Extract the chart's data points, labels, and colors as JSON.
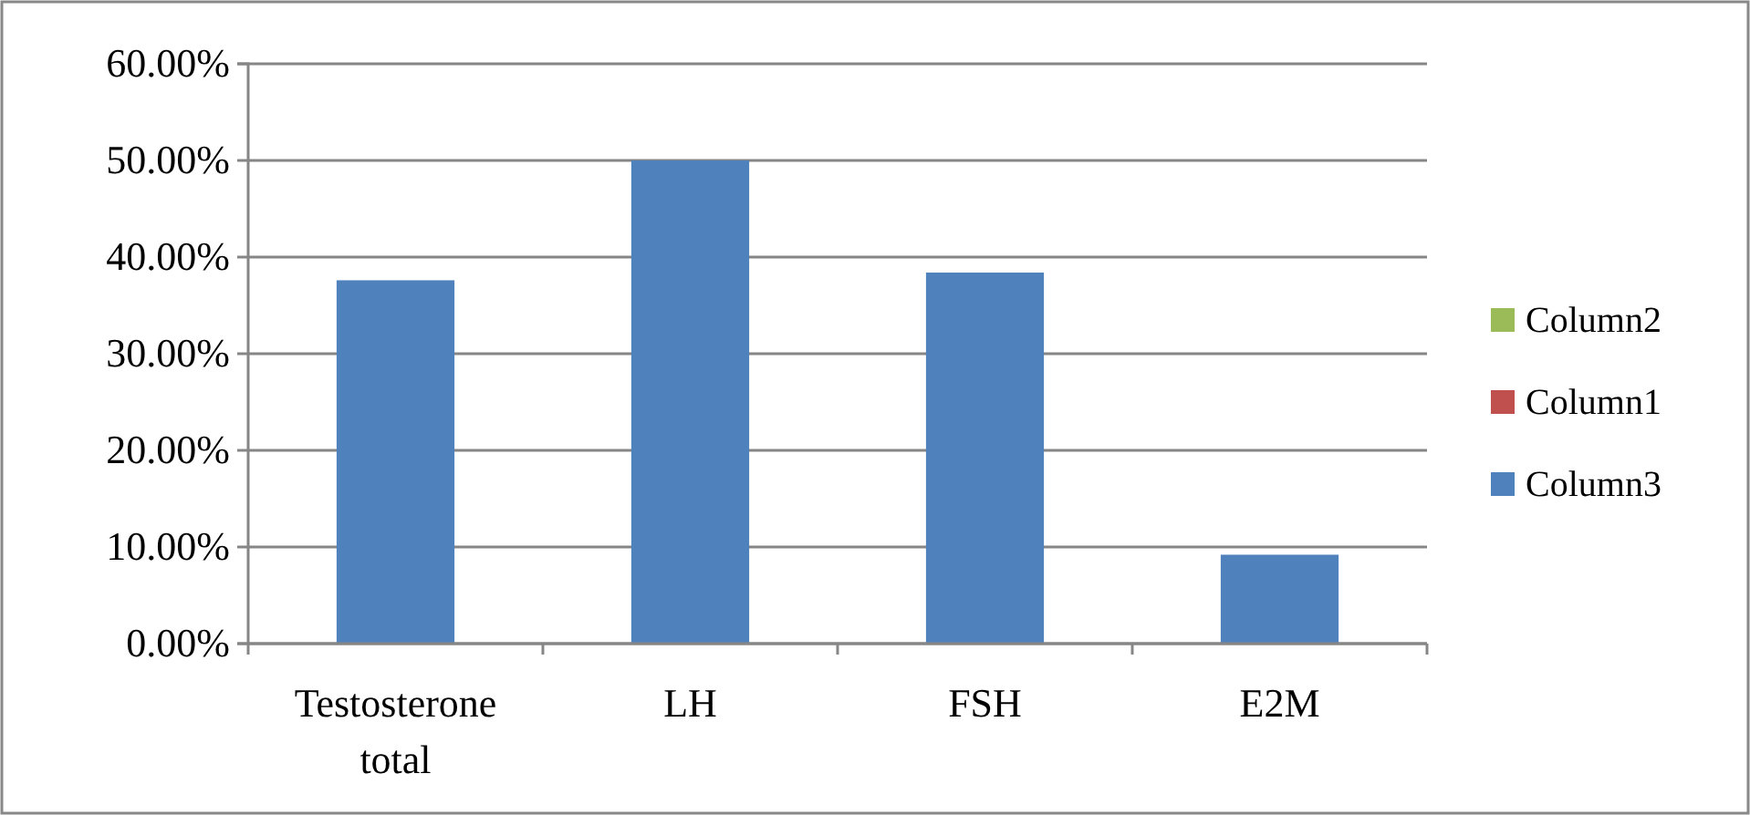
{
  "chart_data": {
    "type": "bar",
    "stacked": true,
    "categories": [
      "Testosterone total",
      "LH",
      "FSH",
      "E2M"
    ],
    "series": [
      {
        "name": "Column3",
        "color": "#4f81bd",
        "values": [
          37.6,
          50,
          38.4,
          9.2
        ]
      },
      {
        "name": "Column1",
        "color": "#c0504d",
        "values": [
          null,
          null,
          null,
          null
        ]
      },
      {
        "name": "Column2",
        "color": "#9bbb59",
        "values": [
          null,
          null,
          null,
          null
        ]
      }
    ],
    "ylim": [
      0,
      60
    ],
    "yticks": [
      {
        "value": 0,
        "label": "0.00%"
      },
      {
        "value": 10,
        "label": "10.00%"
      },
      {
        "value": 20,
        "label": "20.00%"
      },
      {
        "value": 30,
        "label": "30.00%"
      },
      {
        "value": 40,
        "label": "40.00%"
      },
      {
        "value": 50,
        "label": "50.00%"
      },
      {
        "value": 60,
        "label": "60.00%"
      }
    ],
    "grid": "y",
    "legend": "right"
  }
}
